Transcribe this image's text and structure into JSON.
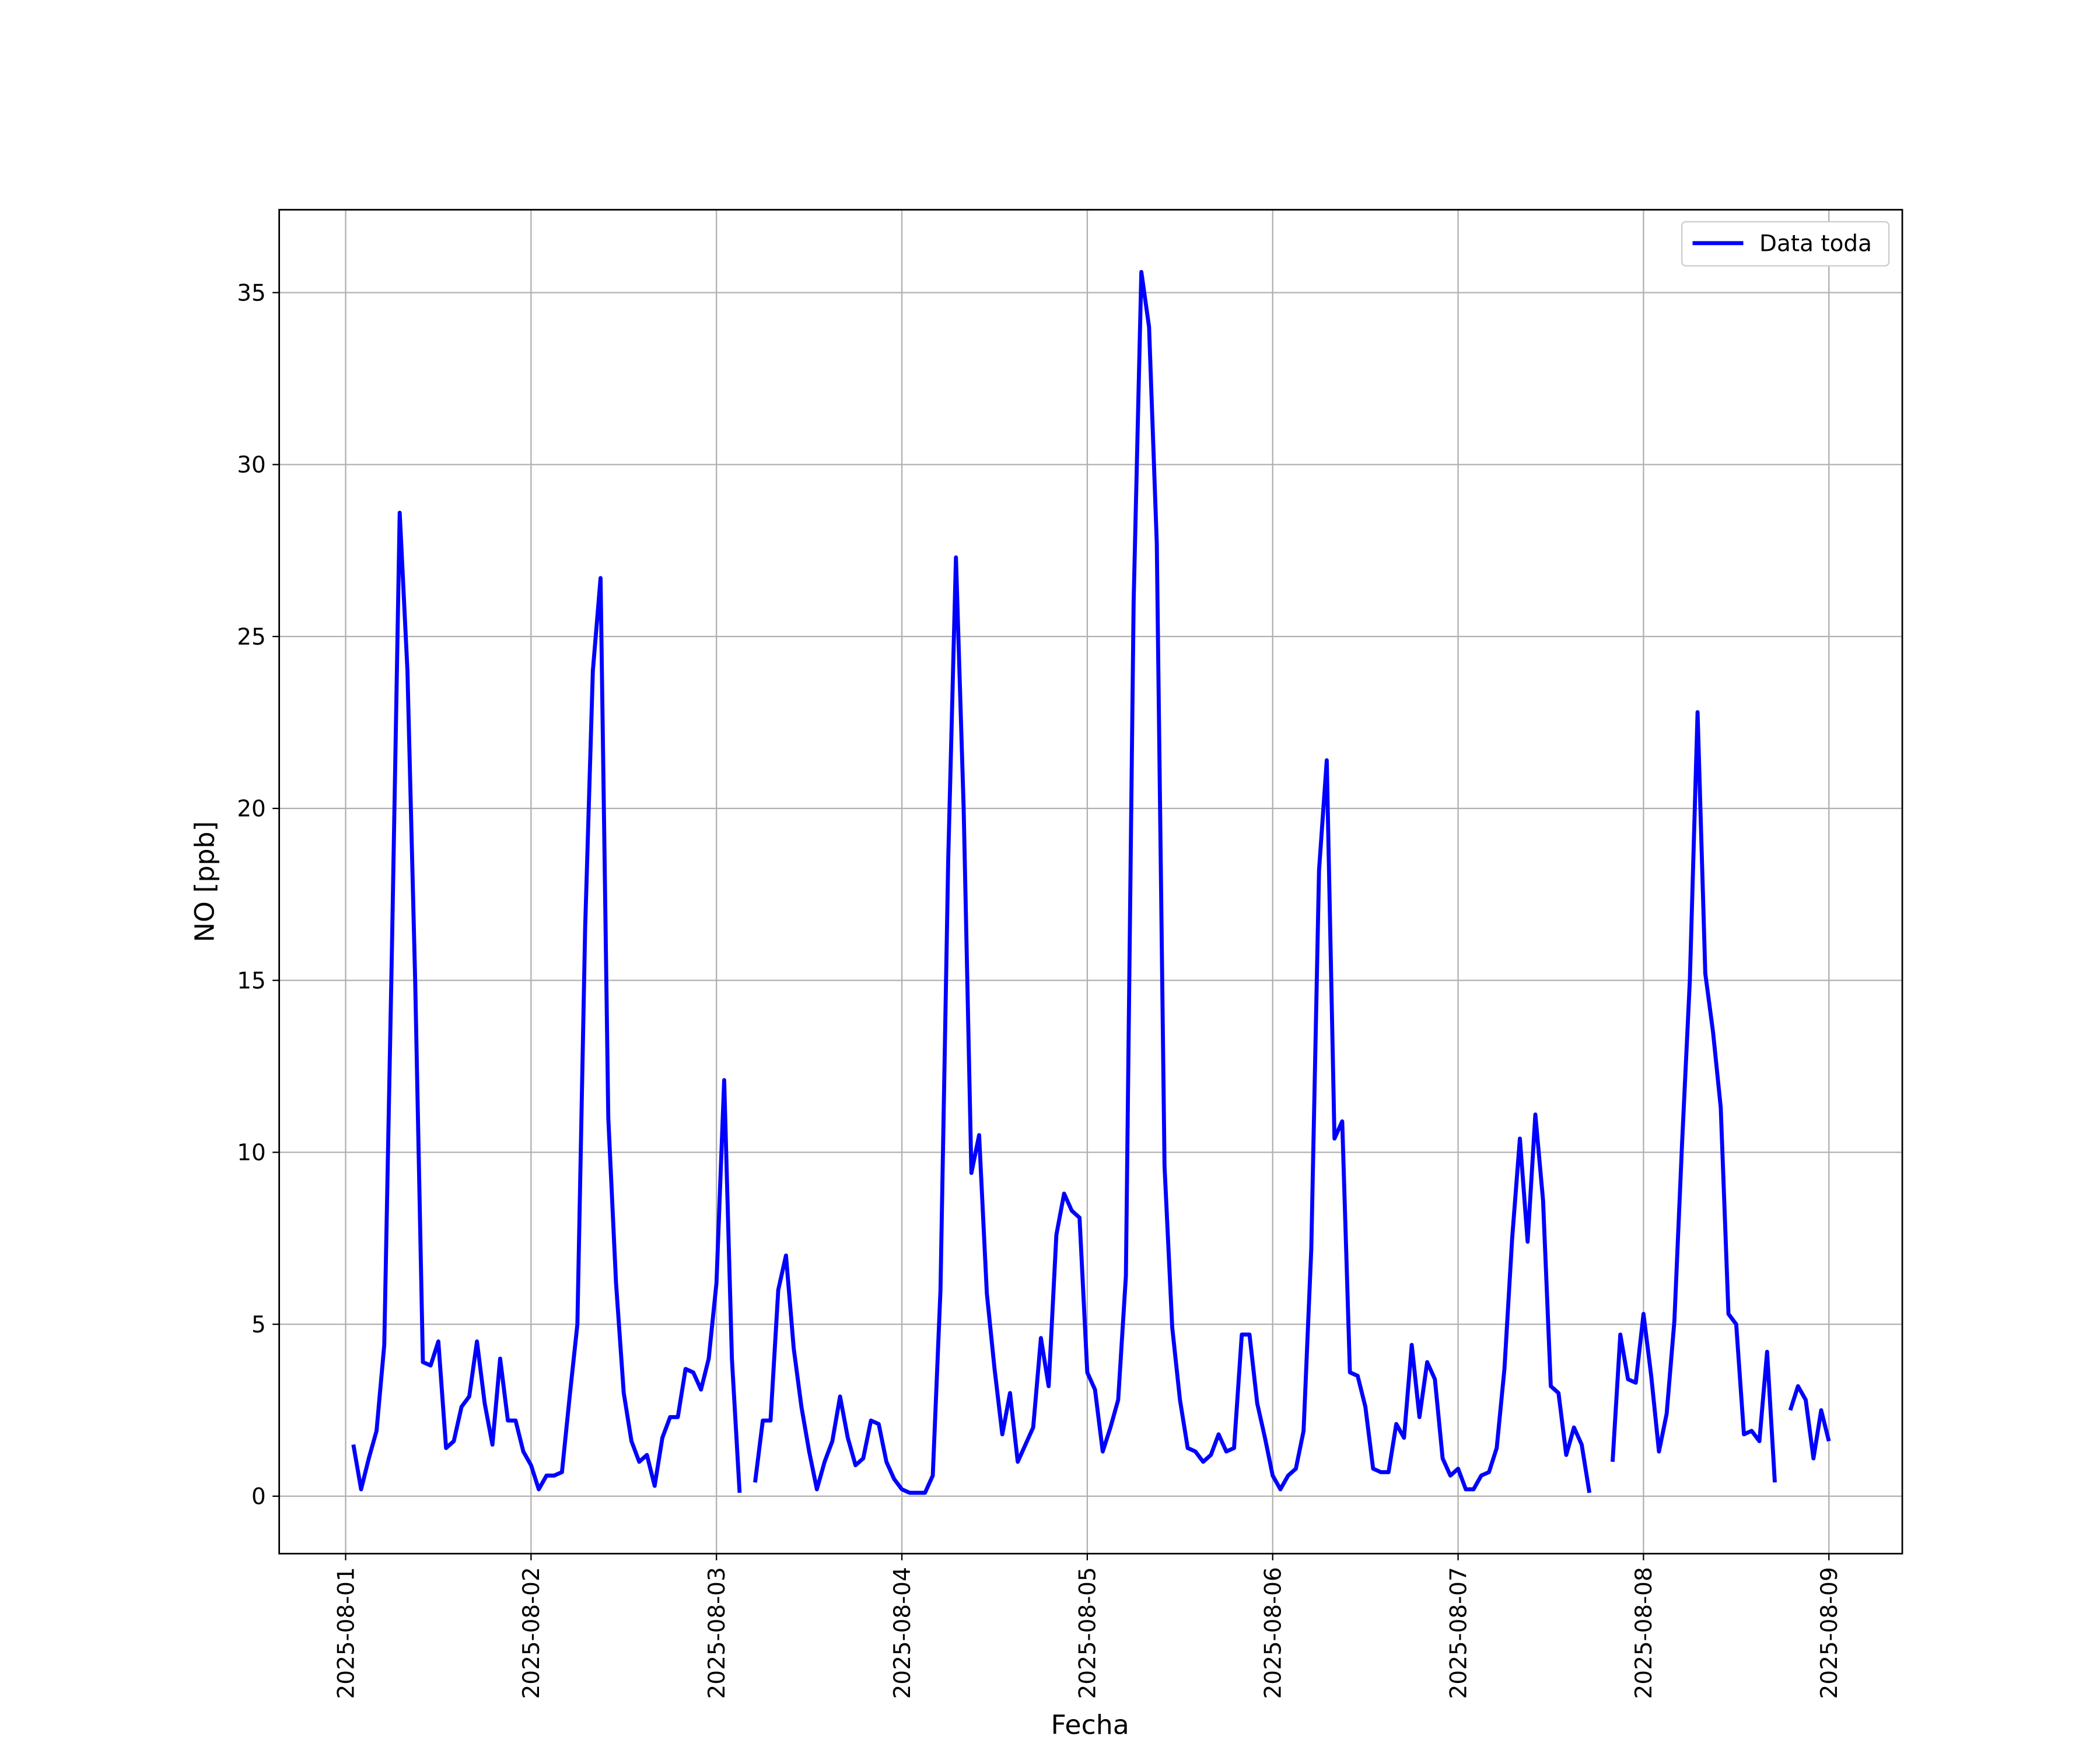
{
  "chart_data": {
    "type": "line",
    "xlabel": "Fecha",
    "ylabel": "NO [ppb]",
    "x": [
      1,
      2,
      3,
      4,
      5,
      6,
      7,
      8,
      9,
      10,
      11,
      12,
      13,
      14,
      15,
      16,
      17,
      18,
      19,
      20,
      21,
      22,
      23,
      24,
      25,
      26,
      27,
      28,
      29,
      30,
      31,
      32,
      33,
      34,
      35,
      36,
      37,
      38,
      39,
      40,
      41,
      42,
      43,
      44,
      45,
      46,
      47,
      48,
      49,
      50,
      51,
      52,
      53,
      54,
      55,
      56,
      57,
      58,
      59,
      60,
      61,
      62,
      63,
      64,
      65,
      66,
      67,
      68,
      69,
      70,
      71,
      72,
      73,
      74,
      75,
      76,
      77,
      78,
      79,
      80,
      81,
      82,
      83,
      84,
      85,
      86,
      87,
      88,
      89,
      90,
      91,
      92,
      93,
      94,
      95,
      96,
      97,
      98,
      99,
      100,
      101,
      102,
      103,
      104,
      105,
      106,
      107,
      108,
      109,
      110,
      111,
      112,
      113,
      114,
      115,
      116,
      117,
      118,
      119,
      120,
      121,
      122,
      123,
      124,
      125,
      126,
      127,
      128,
      129,
      130,
      131,
      132,
      133,
      134,
      135,
      136,
      137,
      138,
      139,
      140,
      141,
      142,
      143,
      144,
      145,
      146,
      147,
      148,
      149,
      150,
      151,
      152,
      153,
      154,
      155,
      156,
      157,
      158,
      159,
      160,
      161,
      162,
      163,
      164,
      165,
      166,
      167,
      168,
      169,
      170,
      171,
      172,
      173,
      174,
      175,
      176,
      177,
      178,
      179,
      180,
      181,
      182,
      183,
      184,
      185,
      186,
      187,
      188,
      189,
      190,
      191,
      192
    ],
    "series": [
      {
        "name": "Data toda",
        "color": "#0000ff",
        "values": [
          1.5,
          0.2,
          1.1,
          1.9,
          4.4,
          16,
          28.6,
          24,
          15,
          3.9,
          3.8,
          4.5,
          1.4,
          1.6,
          2.6,
          2.9,
          4.5,
          2.7,
          1.5,
          4.0,
          2.2,
          2.2,
          1.3,
          0.9,
          0.2,
          0.6,
          0.6,
          0.7,
          2.9,
          5.0,
          16.5,
          24,
          26.7,
          11,
          6.2,
          3.0,
          1.6,
          1.0,
          1.2,
          0.3,
          1.7,
          2.3,
          2.3,
          3.7,
          3.6,
          3.1,
          4.0,
          6.2,
          12.1,
          4.0,
          0.1,
          null,
          0.4,
          2.2,
          2.2,
          6.0,
          7.0,
          4.3,
          2.6,
          1.3,
          0.2,
          1.0,
          1.6,
          2.9,
          1.7,
          0.9,
          1.1,
          2.2,
          2.1,
          1.0,
          0.5,
          0.2,
          0.1,
          0.1,
          0.1,
          0.6,
          6.0,
          18.5,
          27.3,
          20,
          9.4,
          10.5,
          5.9,
          3.7,
          1.8,
          3.0,
          1.0,
          1.5,
          2.0,
          4.6,
          3.2,
          7.6,
          8.8,
          8.3,
          8.1,
          3.6,
          3.1,
          1.3,
          2.0,
          2.8,
          6.4,
          26,
          35.6,
          34,
          27.7,
          9.6,
          4.9,
          2.8,
          1.4,
          1.3,
          1.0,
          1.2,
          1.8,
          1.3,
          1.4,
          4.7,
          4.7,
          2.7,
          1.7,
          0.6,
          0.2,
          0.6,
          0.8,
          1.9,
          7.2,
          18.2,
          21.4,
          10.4,
          10.9,
          3.6,
          3.5,
          2.6,
          0.8,
          0.7,
          0.7,
          2.1,
          1.7,
          4.4,
          2.3,
          3.9,
          3.4,
          1.1,
          0.6,
          0.8,
          0.2,
          0.2,
          0.6,
          0.7,
          1.4,
          3.7,
          7.5,
          10.4,
          7.4,
          11.1,
          8.6,
          3.2,
          3.0,
          1.2,
          2.0,
          1.5,
          0.1,
          null,
          null,
          1.0,
          4.7,
          3.4,
          3.3,
          5.3,
          3.5,
          1.3,
          2.4,
          5.1,
          10.3,
          15,
          22.8,
          15.2,
          13.5,
          11.3,
          5.3,
          5.0,
          1.8,
          1.9,
          1.6,
          4.2,
          0.4,
          null,
          2.5,
          3.2,
          2.8,
          1.1,
          2.5,
          1.6
        ]
      }
    ],
    "xlim": [
      -8.6,
      201.5
    ],
    "xticks": [
      {
        "value": 0,
        "label": "2025-08-01"
      },
      {
        "value": 24,
        "label": "2025-08-02"
      },
      {
        "value": 48,
        "label": "2025-08-03"
      },
      {
        "value": 72,
        "label": "2025-08-04"
      },
      {
        "value": 96,
        "label": "2025-08-05"
      },
      {
        "value": 120,
        "label": "2025-08-06"
      },
      {
        "value": 144,
        "label": "2025-08-07"
      },
      {
        "value": 168,
        "label": "2025-08-08"
      },
      {
        "value": 192,
        "label": "2025-08-09"
      }
    ],
    "ylim": [
      -1.67,
      37.41
    ],
    "yticks": [
      0,
      5,
      10,
      15,
      20,
      25,
      30,
      35
    ],
    "grid": true,
    "legend": "upper right"
  }
}
